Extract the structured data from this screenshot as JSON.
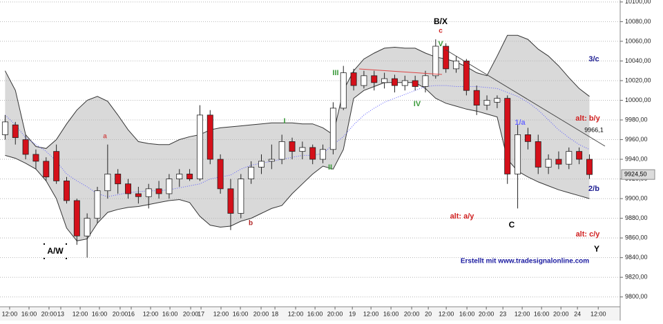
{
  "chart_data": {
    "type": "candlestick",
    "ylim": [
      9790,
      10102
    ],
    "xlim": [
      -0.5,
      60
    ],
    "grid": true,
    "yticks": [
      {
        "value": 9800,
        "label": "9800,00"
      },
      {
        "value": 9820,
        "label": "9820,00"
      },
      {
        "value": 9840,
        "label": "9840,00"
      },
      {
        "value": 9860,
        "label": "9860,00"
      },
      {
        "value": 9880,
        "label": "9880,00"
      },
      {
        "value": 9900,
        "label": "9900,00"
      },
      {
        "value": 9920,
        "label": "9920,00"
      },
      {
        "value": 9940,
        "label": "9940,00"
      },
      {
        "value": 9960,
        "label": "9960,00"
      },
      {
        "value": 9980,
        "label": "9980,00"
      },
      {
        "value": 10000,
        "label": "10000,00"
      },
      {
        "value": 10020,
        "label": "10020,00"
      },
      {
        "value": 10040,
        "label": "10040,00"
      },
      {
        "value": 10060,
        "label": "10060,00"
      },
      {
        "value": 10080,
        "label": "10080,00"
      },
      {
        "value": 10100,
        "label": "10100,00"
      }
    ],
    "xticks": [
      {
        "value": 0.44,
        "label": "12:00"
      },
      {
        "value": 2.33,
        "label": "16:00"
      },
      {
        "value": 4.28,
        "label": "20:00"
      },
      {
        "value": 5.43,
        "label": "13"
      },
      {
        "value": 7.32,
        "label": "12:00"
      },
      {
        "value": 9.2,
        "label": "16:00"
      },
      {
        "value": 11.22,
        "label": "20:00"
      },
      {
        "value": 12.3,
        "label": "16"
      },
      {
        "value": 14.19,
        "label": "12:00"
      },
      {
        "value": 16.08,
        "label": "16:00"
      },
      {
        "value": 18.1,
        "label": "20:00"
      },
      {
        "value": 19.11,
        "label": "17"
      },
      {
        "value": 21.06,
        "label": "12:00"
      },
      {
        "value": 22.95,
        "label": "16:00"
      },
      {
        "value": 24.97,
        "label": "20:00"
      },
      {
        "value": 26.32,
        "label": "18"
      },
      {
        "value": 28.34,
        "label": "12:00"
      },
      {
        "value": 30.23,
        "label": "16:00"
      },
      {
        "value": 32.18,
        "label": "20:00"
      },
      {
        "value": 33.87,
        "label": "19"
      },
      {
        "value": 35.69,
        "label": "12:00"
      },
      {
        "value": 37.64,
        "label": "16:00"
      },
      {
        "value": 39.66,
        "label": "20:00"
      },
      {
        "value": 41.28,
        "label": "20"
      },
      {
        "value": 43.03,
        "label": "12:00"
      },
      {
        "value": 45.05,
        "label": "16:00"
      },
      {
        "value": 46.94,
        "label": "20:00"
      },
      {
        "value": 48.56,
        "label": "23"
      },
      {
        "value": 50.44,
        "label": "12:00"
      },
      {
        "value": 52.33,
        "label": "16:00"
      },
      {
        "value": 54.22,
        "label": "20:00"
      },
      {
        "value": 55.83,
        "label": "24"
      },
      {
        "value": 57.86,
        "label": "12:00"
      }
    ],
    "up_color": "#ffffff",
    "down_color": "#d4101a",
    "band_color": "#d9d9d9",
    "middle_color": "#5a5aff",
    "open": [
      9965,
      9975,
      9960,
      9945,
      9938,
      9948,
      9918,
      9898,
      9862,
      9880,
      9908,
      9925,
      9915,
      9905,
      9902,
      9910,
      9905,
      9920,
      9925,
      9920,
      9985,
      9940,
      9910,
      9885,
      9920,
      9932,
      9938,
      9940,
      9958,
      9948,
      9952,
      9940,
      9950,
      9992,
      10028,
      10015,
      10025,
      10018,
      10022,
      10015,
      10020,
      10014,
      10025,
      10055,
      10032,
      10040,
      10010,
      9995,
      9998,
      10002,
      9925,
      9965,
      9958,
      9932,
      9940,
      9935,
      9948,
      9940
    ],
    "high": [
      9985,
      9978,
      9965,
      9950,
      9942,
      9955,
      9922,
      9900,
      9885,
      9912,
      9955,
      9930,
      9920,
      9912,
      9915,
      9918,
      9925,
      9930,
      9930,
      9995,
      9990,
      9945,
      9920,
      9925,
      9938,
      9945,
      9955,
      9965,
      9962,
      9958,
      9955,
      9955,
      9998,
      10035,
      10032,
      10030,
      10030,
      10028,
      10026,
      10025,
      10025,
      10030,
      10062,
      10058,
      10045,
      10042,
      10015,
      10005,
      10005,
      10005,
      9975,
      9972,
      9965,
      9945,
      9948,
      9952,
      9952,
      9945
    ],
    "low": [
      9960,
      9955,
      9940,
      9930,
      9918,
      9915,
      9895,
      9853,
      9840,
      9875,
      9900,
      9905,
      9900,
      9895,
      9890,
      9900,
      9900,
      9912,
      9918,
      9918,
      9935,
      9905,
      9868,
      9880,
      9915,
      9925,
      9930,
      9935,
      9940,
      9940,
      9935,
      9936,
      9945,
      9990,
      10010,
      10012,
      10010,
      10012,
      10008,
      10010,
      10010,
      10008,
      10022,
      10028,
      10028,
      10005,
      9985,
      9990,
      9992,
      9915,
      9890,
      9950,
      9925,
      9925,
      9930,
      9930,
      9935,
      9920
    ],
    "close": [
      9978,
      9962,
      9945,
      9938,
      9922,
      9918,
      9898,
      9862,
      9880,
      9908,
      9925,
      9915,
      9905,
      9902,
      9910,
      9905,
      9920,
      9925,
      9920,
      9985,
      9940,
      9910,
      9885,
      9920,
      9932,
      9938,
      9940,
      9958,
      9948,
      9952,
      9940,
      9950,
      9992,
      10028,
      10015,
      10025,
      10018,
      10022,
      10015,
      10020,
      10014,
      10025,
      10055,
      10032,
      10040,
      10010,
      9995,
      10000,
      10002,
      9925,
      9965,
      9958,
      9932,
      9940,
      9935,
      9948,
      9940,
      9924.5
    ],
    "upper_band": [
      10030,
      10010,
      9965,
      9953,
      9951,
      9960,
      9976,
      9990,
      10000,
      10004,
      9999,
      9985,
      9970,
      9958,
      9956,
      9955,
      9955,
      9960,
      9963,
      9965,
      9970,
      9972,
      9973,
      9974,
      9975,
      9976,
      9977,
      9977,
      9977,
      9976,
      9976,
      9972,
      9965,
      10010,
      10030,
      10042,
      10048,
      10053,
      10054,
      10053,
      10053,
      10048,
      10044,
      10042,
      10039,
      10034,
      10028,
      10025,
      10045,
      10066,
      10066,
      10062,
      10052,
      10045,
      10035,
      10023,
      10012,
      10004
    ],
    "middle_band": [
      9985,
      9975,
      9962,
      9955,
      9948,
      9938,
      9925,
      9918,
      9912,
      9905,
      9902,
      9904,
      9906,
      9907,
      9908,
      9908,
      9909,
      9911,
      9913,
      9915,
      9920,
      9922,
      9924,
      9930,
      9934,
      9936,
      9938,
      9940,
      9942,
      9944,
      9944,
      9946,
      9955,
      9963,
      9975,
      9985,
      9992,
      9998,
      10002,
      10006,
      10010,
      10014,
      10015,
      10015,
      10014,
      10014,
      10014,
      10013,
      10012,
      10008,
      10004,
      9998,
      9990,
      9980,
      9970,
      9962,
      9955,
      9950
    ],
    "lower_band": [
      9944,
      9941,
      9936,
      9930,
      9918,
      9900,
      9870,
      9857,
      9859,
      9875,
      9886,
      9889,
      9891,
      9892,
      9894,
      9896,
      9898,
      9899,
      9896,
      9882,
      9873,
      9871,
      9872,
      9877,
      9880,
      9885,
      9890,
      9893,
      9905,
      9915,
      9925,
      9933,
      9930,
      9950,
      10002,
      10010,
      10014,
      10018,
      10018,
      10018,
      10018,
      10012,
      10002,
      9997,
      9994,
      9991,
      9989,
      9986,
      9983,
      9940,
      9928,
      9922,
      9917,
      9913,
      9909,
      9906,
      9903,
      9900
    ],
    "last_price": {
      "value": 9924.5,
      "label": "9924,50"
    },
    "annotations": [
      "A/W",
      "a",
      "b",
      "I",
      "II",
      "III",
      "IV",
      "V",
      "B/X",
      "c",
      "1/a",
      "alt: b/y",
      "3/c",
      "2/b",
      "alt: a/y",
      "C",
      "alt: c/y",
      "Y",
      "9966,1",
      "Erstellt mit www.tradesignalonline.com"
    ]
  }
}
